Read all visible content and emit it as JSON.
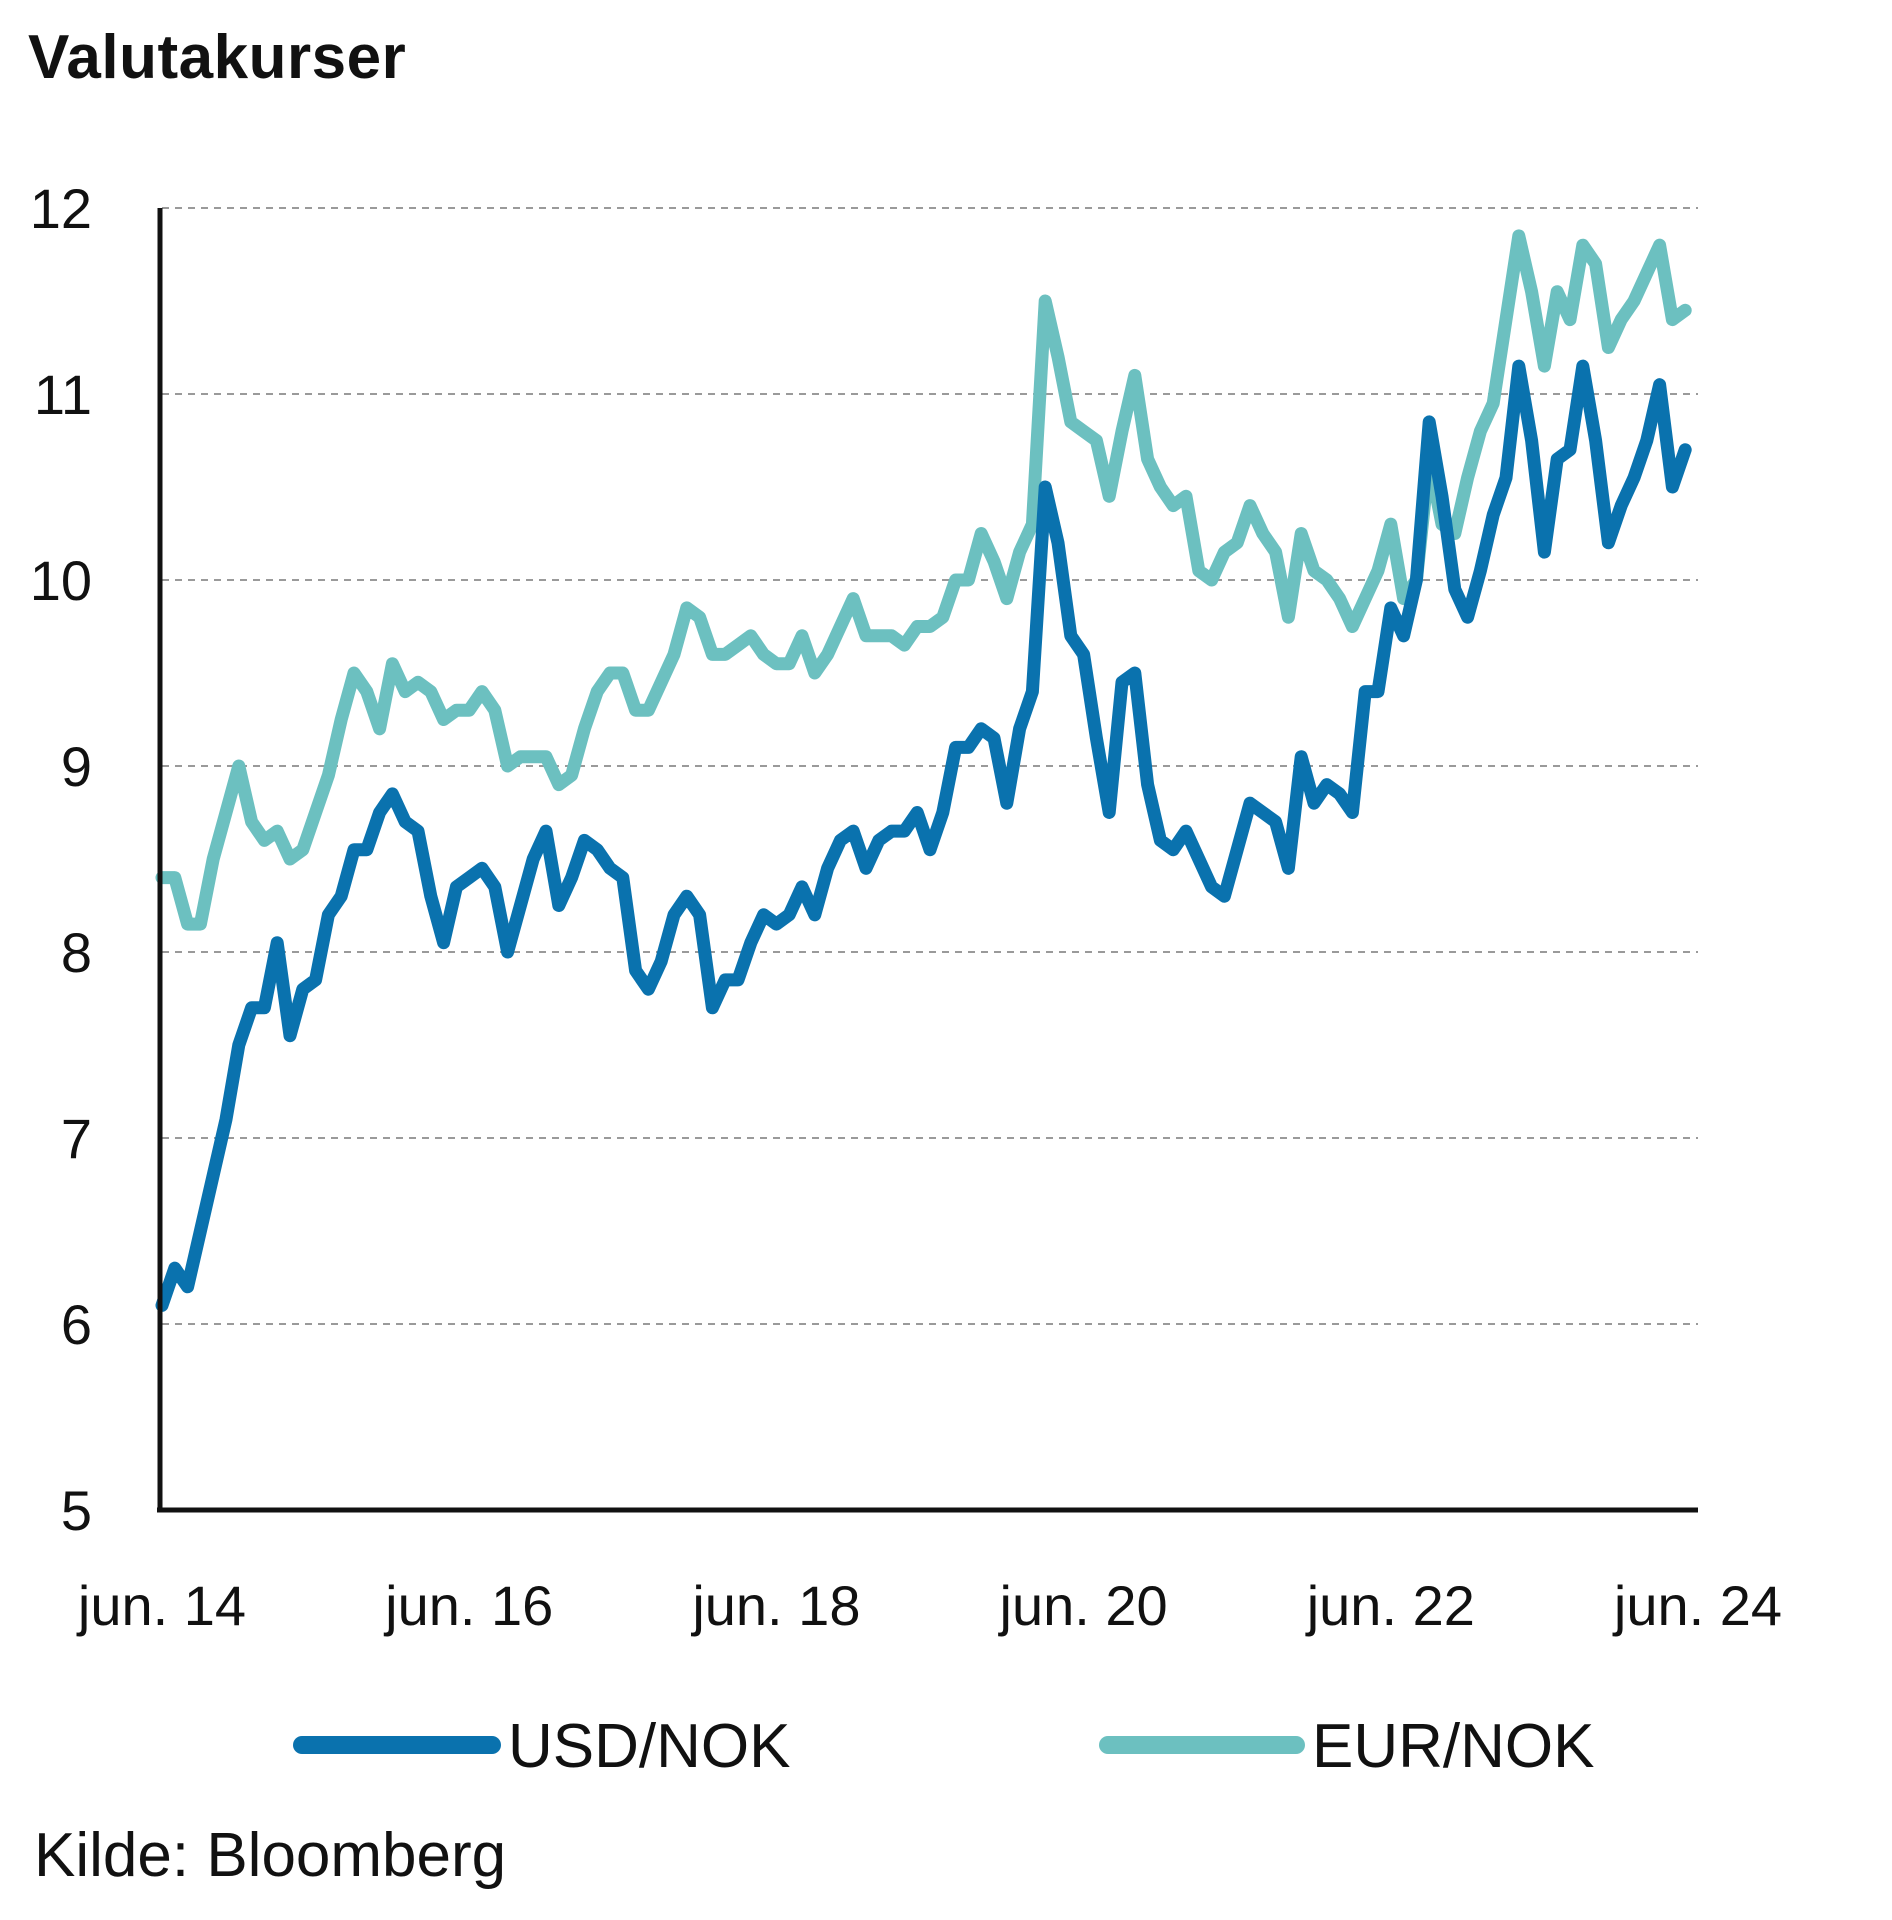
{
  "chart_data": {
    "type": "line",
    "title": "Valutakurser",
    "source": "Kilde: Bloomberg",
    "xlabel": "",
    "ylabel": "",
    "ylim": [
      5,
      12
    ],
    "yticks": [
      5,
      6,
      7,
      8,
      9,
      10,
      11,
      12
    ],
    "x_start": "2014-06",
    "x_end": "2024-06",
    "xtick_labels": [
      {
        "x": "2014-06",
        "label": "jun. 14"
      },
      {
        "x": "2016-06",
        "label": "jun. 16"
      },
      {
        "x": "2018-06",
        "label": "jun. 18"
      },
      {
        "x": "2020-06",
        "label": "jun. 20"
      },
      {
        "x": "2022-06",
        "label": "jun. 22"
      },
      {
        "x": "2024-06",
        "label": "jun. 24"
      }
    ],
    "grid": "horizontal dashed",
    "legend_position": "bottom",
    "series": [
      {
        "name": "USD/NOK",
        "color": "#0a72ae",
        "points": [
          [
            "2014-06",
            6.1
          ],
          [
            "2014-07",
            6.3
          ],
          [
            "2014-08",
            6.2
          ],
          [
            "2014-09",
            6.5
          ],
          [
            "2014-10",
            6.8
          ],
          [
            "2014-11",
            7.1
          ],
          [
            "2014-12",
            7.5
          ],
          [
            "2015-01",
            7.7
          ],
          [
            "2015-02",
            7.7
          ],
          [
            "2015-03",
            8.05
          ],
          [
            "2015-04",
            7.55
          ],
          [
            "2015-05",
            7.8
          ],
          [
            "2015-06",
            7.85
          ],
          [
            "2015-07",
            8.2
          ],
          [
            "2015-08",
            8.3
          ],
          [
            "2015-09",
            8.55
          ],
          [
            "2015-10",
            8.55
          ],
          [
            "2015-11",
            8.75
          ],
          [
            "2015-12",
            8.85
          ],
          [
            "2016-01",
            8.7
          ],
          [
            "2016-02",
            8.65
          ],
          [
            "2016-03",
            8.3
          ],
          [
            "2016-04",
            8.05
          ],
          [
            "2016-05",
            8.35
          ],
          [
            "2016-06",
            8.4
          ],
          [
            "2016-07",
            8.45
          ],
          [
            "2016-08",
            8.35
          ],
          [
            "2016-09",
            8.0
          ],
          [
            "2016-10",
            8.25
          ],
          [
            "2016-11",
            8.5
          ],
          [
            "2016-12",
            8.65
          ],
          [
            "2017-01",
            8.25
          ],
          [
            "2017-02",
            8.4
          ],
          [
            "2017-03",
            8.6
          ],
          [
            "2017-04",
            8.55
          ],
          [
            "2017-05",
            8.45
          ],
          [
            "2017-06",
            8.4
          ],
          [
            "2017-07",
            7.9
          ],
          [
            "2017-08",
            7.8
          ],
          [
            "2017-09",
            7.95
          ],
          [
            "2017-10",
            8.2
          ],
          [
            "2017-11",
            8.3
          ],
          [
            "2017-12",
            8.2
          ],
          [
            "2018-01",
            7.7
          ],
          [
            "2018-02",
            7.85
          ],
          [
            "2018-03",
            7.85
          ],
          [
            "2018-04",
            8.05
          ],
          [
            "2018-05",
            8.2
          ],
          [
            "2018-06",
            8.15
          ],
          [
            "2018-07",
            8.2
          ],
          [
            "2018-08",
            8.35
          ],
          [
            "2018-09",
            8.2
          ],
          [
            "2018-10",
            8.45
          ],
          [
            "2018-11",
            8.6
          ],
          [
            "2018-12",
            8.65
          ],
          [
            "2019-01",
            8.45
          ],
          [
            "2019-02",
            8.6
          ],
          [
            "2019-03",
            8.65
          ],
          [
            "2019-04",
            8.65
          ],
          [
            "2019-05",
            8.75
          ],
          [
            "2019-06",
            8.55
          ],
          [
            "2019-07",
            8.75
          ],
          [
            "2019-08",
            9.1
          ],
          [
            "2019-09",
            9.1
          ],
          [
            "2019-10",
            9.2
          ],
          [
            "2019-11",
            9.15
          ],
          [
            "2019-12",
            8.8
          ],
          [
            "2020-01",
            9.2
          ],
          [
            "2020-02",
            9.4
          ],
          [
            "2020-03",
            10.5
          ],
          [
            "2020-04",
            10.2
          ],
          [
            "2020-05",
            9.7
          ],
          [
            "2020-06",
            9.6
          ],
          [
            "2020-07",
            9.15
          ],
          [
            "2020-08",
            8.75
          ],
          [
            "2020-09",
            9.45
          ],
          [
            "2020-10",
            9.5
          ],
          [
            "2020-11",
            8.9
          ],
          [
            "2020-12",
            8.6
          ],
          [
            "2021-01",
            8.55
          ],
          [
            "2021-02",
            8.65
          ],
          [
            "2021-03",
            8.5
          ],
          [
            "2021-04",
            8.35
          ],
          [
            "2021-05",
            8.3
          ],
          [
            "2021-06",
            8.55
          ],
          [
            "2021-07",
            8.8
          ],
          [
            "2021-08",
            8.75
          ],
          [
            "2021-09",
            8.7
          ],
          [
            "2021-10",
            8.45
          ],
          [
            "2021-11",
            9.05
          ],
          [
            "2021-12",
            8.8
          ],
          [
            "2022-01",
            8.9
          ],
          [
            "2022-02",
            8.85
          ],
          [
            "2022-03",
            8.75
          ],
          [
            "2022-04",
            9.4
          ],
          [
            "2022-05",
            9.4
          ],
          [
            "2022-06",
            9.85
          ],
          [
            "2022-07",
            9.7
          ],
          [
            "2022-08",
            10.0
          ],
          [
            "2022-09",
            10.85
          ],
          [
            "2022-10",
            10.45
          ],
          [
            "2022-11",
            9.95
          ],
          [
            "2022-12",
            9.8
          ],
          [
            "2023-01",
            10.05
          ],
          [
            "2023-02",
            10.35
          ],
          [
            "2023-03",
            10.55
          ],
          [
            "2023-04",
            11.15
          ],
          [
            "2023-05",
            10.75
          ],
          [
            "2023-06",
            10.15
          ],
          [
            "2023-07",
            10.65
          ],
          [
            "2023-08",
            10.7
          ],
          [
            "2023-09",
            11.15
          ],
          [
            "2023-10",
            10.75
          ],
          [
            "2023-11",
            10.2
          ],
          [
            "2023-12",
            10.4
          ],
          [
            "2024-01",
            10.55
          ],
          [
            "2024-02",
            10.75
          ],
          [
            "2024-03",
            11.05
          ],
          [
            "2024-04",
            10.5
          ],
          [
            "2024-05",
            10.7
          ]
        ]
      },
      {
        "name": "EUR/NOK",
        "color": "#6cc0c0",
        "points": [
          [
            "2014-06",
            8.4
          ],
          [
            "2014-07",
            8.4
          ],
          [
            "2014-08",
            8.15
          ],
          [
            "2014-09",
            8.15
          ],
          [
            "2014-10",
            8.5
          ],
          [
            "2014-11",
            8.75
          ],
          [
            "2014-12",
            9.0
          ],
          [
            "2015-01",
            8.7
          ],
          [
            "2015-02",
            8.6
          ],
          [
            "2015-03",
            8.65
          ],
          [
            "2015-04",
            8.5
          ],
          [
            "2015-05",
            8.55
          ],
          [
            "2015-06",
            8.75
          ],
          [
            "2015-07",
            8.95
          ],
          [
            "2015-08",
            9.25
          ],
          [
            "2015-09",
            9.5
          ],
          [
            "2015-10",
            9.4
          ],
          [
            "2015-11",
            9.2
          ],
          [
            "2015-12",
            9.55
          ],
          [
            "2016-01",
            9.4
          ],
          [
            "2016-02",
            9.45
          ],
          [
            "2016-03",
            9.4
          ],
          [
            "2016-04",
            9.25
          ],
          [
            "2016-05",
            9.3
          ],
          [
            "2016-06",
            9.3
          ],
          [
            "2016-07",
            9.4
          ],
          [
            "2016-08",
            9.3
          ],
          [
            "2016-09",
            9.0
          ],
          [
            "2016-10",
            9.05
          ],
          [
            "2016-11",
            9.05
          ],
          [
            "2016-12",
            9.05
          ],
          [
            "2017-01",
            8.9
          ],
          [
            "2017-02",
            8.95
          ],
          [
            "2017-03",
            9.2
          ],
          [
            "2017-04",
            9.4
          ],
          [
            "2017-05",
            9.5
          ],
          [
            "2017-06",
            9.5
          ],
          [
            "2017-07",
            9.3
          ],
          [
            "2017-08",
            9.3
          ],
          [
            "2017-09",
            9.45
          ],
          [
            "2017-10",
            9.6
          ],
          [
            "2017-11",
            9.85
          ],
          [
            "2017-12",
            9.8
          ],
          [
            "2018-01",
            9.6
          ],
          [
            "2018-02",
            9.6
          ],
          [
            "2018-03",
            9.65
          ],
          [
            "2018-04",
            9.7
          ],
          [
            "2018-05",
            9.6
          ],
          [
            "2018-06",
            9.55
          ],
          [
            "2018-07",
            9.55
          ],
          [
            "2018-08",
            9.7
          ],
          [
            "2018-09",
            9.5
          ],
          [
            "2018-10",
            9.6
          ],
          [
            "2018-11",
            9.75
          ],
          [
            "2018-12",
            9.9
          ],
          [
            "2019-01",
            9.7
          ],
          [
            "2019-02",
            9.7
          ],
          [
            "2019-03",
            9.7
          ],
          [
            "2019-04",
            9.65
          ],
          [
            "2019-05",
            9.75
          ],
          [
            "2019-06",
            9.75
          ],
          [
            "2019-07",
            9.8
          ],
          [
            "2019-08",
            10.0
          ],
          [
            "2019-09",
            10.0
          ],
          [
            "2019-10",
            10.25
          ],
          [
            "2019-11",
            10.1
          ],
          [
            "2019-12",
            9.9
          ],
          [
            "2020-01",
            10.15
          ],
          [
            "2020-02",
            10.3
          ],
          [
            "2020-03",
            11.5
          ],
          [
            "2020-04",
            11.2
          ],
          [
            "2020-05",
            10.85
          ],
          [
            "2020-06",
            10.8
          ],
          [
            "2020-07",
            10.75
          ],
          [
            "2020-08",
            10.45
          ],
          [
            "2020-09",
            10.8
          ],
          [
            "2020-10",
            11.1
          ],
          [
            "2020-11",
            10.65
          ],
          [
            "2020-12",
            10.5
          ],
          [
            "2021-01",
            10.4
          ],
          [
            "2021-02",
            10.45
          ],
          [
            "2021-03",
            10.05
          ],
          [
            "2021-04",
            10.0
          ],
          [
            "2021-05",
            10.15
          ],
          [
            "2021-06",
            10.2
          ],
          [
            "2021-07",
            10.4
          ],
          [
            "2021-08",
            10.25
          ],
          [
            "2021-09",
            10.15
          ],
          [
            "2021-10",
            9.8
          ],
          [
            "2021-11",
            10.25
          ],
          [
            "2021-12",
            10.05
          ],
          [
            "2022-01",
            10.0
          ],
          [
            "2022-02",
            9.9
          ],
          [
            "2022-03",
            9.75
          ],
          [
            "2022-04",
            9.9
          ],
          [
            "2022-05",
            10.05
          ],
          [
            "2022-06",
            10.3
          ],
          [
            "2022-07",
            9.9
          ],
          [
            "2022-08",
            10.0
          ],
          [
            "2022-09",
            10.65
          ],
          [
            "2022-10",
            10.3
          ],
          [
            "2022-11",
            10.25
          ],
          [
            "2022-12",
            10.55
          ],
          [
            "2023-01",
            10.8
          ],
          [
            "2023-02",
            10.95
          ],
          [
            "2023-03",
            11.4
          ],
          [
            "2023-04",
            11.85
          ],
          [
            "2023-05",
            11.55
          ],
          [
            "2023-06",
            11.15
          ],
          [
            "2023-07",
            11.55
          ],
          [
            "2023-08",
            11.4
          ],
          [
            "2023-09",
            11.8
          ],
          [
            "2023-10",
            11.7
          ],
          [
            "2023-11",
            11.25
          ],
          [
            "2023-12",
            11.4
          ],
          [
            "2024-01",
            11.5
          ],
          [
            "2024-02",
            11.65
          ],
          [
            "2024-03",
            11.8
          ],
          [
            "2024-04",
            11.4
          ],
          [
            "2024-05",
            11.45
          ]
        ]
      }
    ]
  }
}
